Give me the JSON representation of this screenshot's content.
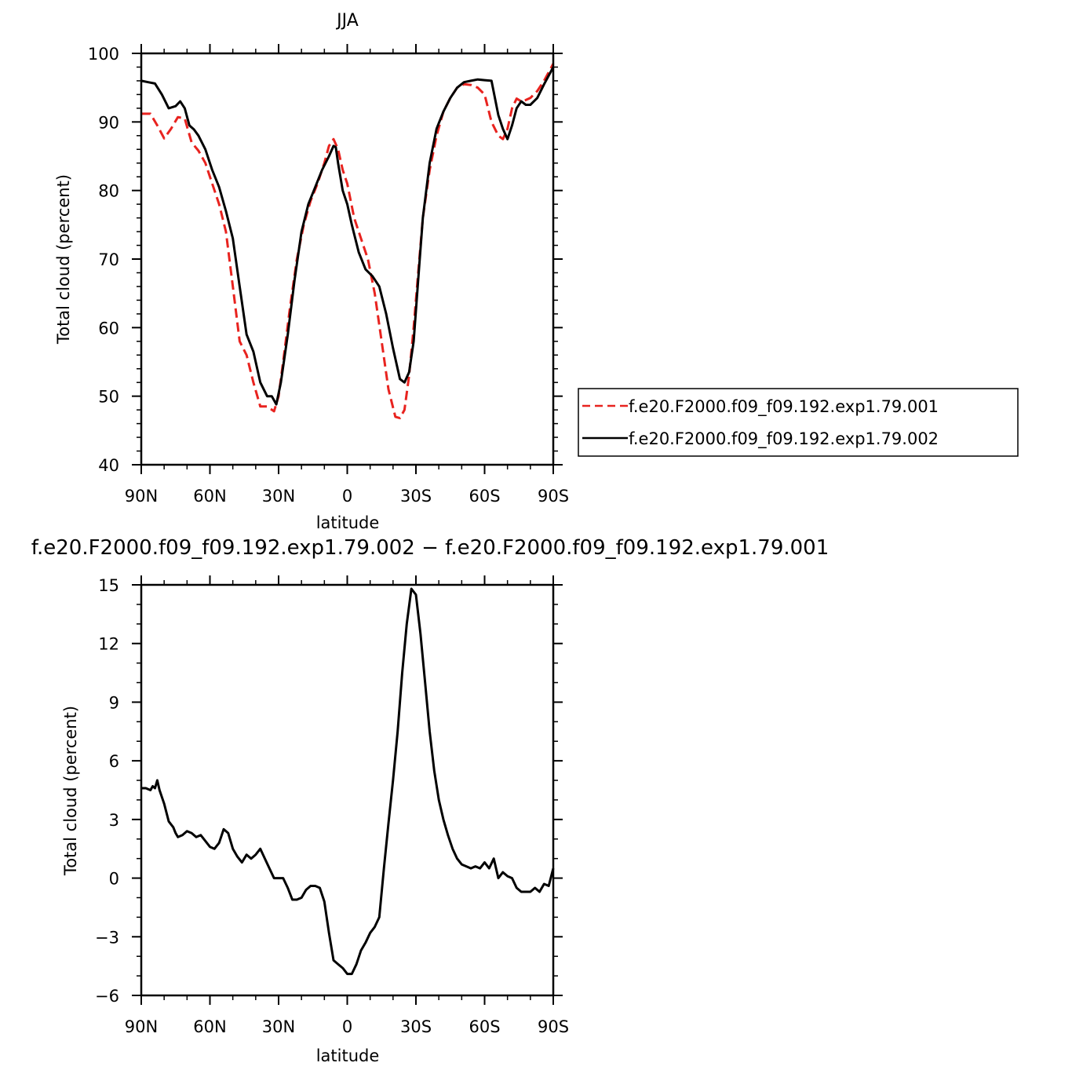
{
  "chart_data": [
    {
      "type": "line",
      "title": "JJA",
      "xlabel": "latitude",
      "ylabel": "Total cloud (percent)",
      "xlim": [
        90,
        -90
      ],
      "ylim": [
        40,
        100
      ],
      "yticks": [
        40,
        50,
        60,
        70,
        80,
        90,
        100
      ],
      "xticks": [
        {
          "value": 90,
          "label": "90N"
        },
        {
          "value": 60,
          "label": "60N"
        },
        {
          "value": 30,
          "label": "30N"
        },
        {
          "value": 0,
          "label": "0"
        },
        {
          "value": -30,
          "label": "30S"
        },
        {
          "value": -60,
          "label": "60S"
        },
        {
          "value": -90,
          "label": "90S"
        }
      ],
      "legend_position": "right",
      "series": [
        {
          "name": "f.e20.F2000.f09_f09.192.exp1.79.001",
          "color": "#e8231f",
          "dash": "dashed",
          "x": [
            90,
            86,
            83,
            80,
            77,
            74,
            71,
            68,
            65,
            62,
            59,
            56,
            53,
            50,
            47,
            44,
            41,
            38,
            35,
            32,
            30,
            28,
            25,
            22,
            19,
            16,
            13,
            10,
            8,
            6,
            4,
            2,
            0,
            -3,
            -6,
            -9,
            -12,
            -15,
            -18,
            -21,
            -23,
            -25,
            -27,
            -29,
            -31,
            -33,
            -36,
            -39,
            -42,
            -45,
            -48,
            -51,
            -54,
            -57,
            -60,
            -63,
            -66,
            -68,
            -70,
            -72,
            -74,
            -76,
            -78,
            -80,
            -83,
            -86,
            -90
          ],
          "y": [
            91.2,
            91.2,
            89.5,
            87.6,
            89,
            90.7,
            90.5,
            87,
            85.8,
            84,
            81,
            78,
            74,
            66,
            58,
            56,
            52,
            48.5,
            48.5,
            47.8,
            50,
            55,
            63,
            70,
            75,
            78.5,
            81,
            84,
            86.5,
            87.5,
            86,
            83,
            81,
            76,
            73,
            70,
            65,
            58,
            51,
            47,
            46.8,
            48,
            53,
            60,
            68,
            76,
            83,
            88,
            91.5,
            93.5,
            95,
            95.5,
            95.4,
            95,
            94,
            90,
            88,
            87.5,
            89,
            92,
            93.4,
            93,
            93.2,
            93.5,
            94.5,
            96,
            98.5
          ]
        },
        {
          "name": "f.e20.F2000.f09_f09.192.exp1.79.002",
          "color": "#000000",
          "dash": "solid",
          "x": [
            90,
            87,
            84,
            81,
            78,
            75,
            73,
            71,
            69,
            67,
            65,
            62,
            59,
            56,
            53,
            50,
            47,
            44,
            41,
            38,
            35,
            33,
            31,
            29,
            26,
            23,
            20,
            17,
            14,
            11,
            8,
            6,
            5,
            4,
            2,
            0,
            -2,
            -5,
            -8,
            -11,
            -14,
            -17,
            -20,
            -23,
            -25,
            -27,
            -29,
            -31,
            -33,
            -36,
            -39,
            -42,
            -45,
            -48,
            -51,
            -54,
            -57,
            -60,
            -63,
            -66,
            -68,
            -70,
            -72,
            -74,
            -76,
            -78,
            -80,
            -83,
            -86,
            -90
          ],
          "y": [
            96,
            95.8,
            95.6,
            94,
            92,
            92.3,
            93,
            92,
            89.5,
            88.9,
            88,
            86,
            83,
            80.5,
            77,
            73,
            66,
            59,
            56.5,
            52,
            50,
            50,
            48.8,
            52,
            59,
            67,
            74,
            78,
            80.5,
            83,
            85,
            86.5,
            86.3,
            84,
            80,
            78,
            75,
            71,
            68.5,
            67.5,
            66,
            62,
            57,
            52.5,
            52,
            53.5,
            58,
            67,
            76,
            84,
            89,
            91.5,
            93.5,
            95,
            95.8,
            96,
            96.2,
            96.1,
            96,
            91,
            89,
            87.5,
            89.5,
            92,
            93,
            92.5,
            92.5,
            93.5,
            95.5,
            98
          ]
        }
      ]
    },
    {
      "type": "line",
      "title": "f.e20.F2000.f09_f09.192.exp1.79.002 − f.e20.F2000.f09_f09.192.exp1.79.001",
      "xlabel": "latitude",
      "ylabel": "Total cloud (percent)",
      "xlim": [
        90,
        -90
      ],
      "ylim": [
        -6,
        15
      ],
      "yticks": [
        -6,
        -3,
        0,
        3,
        6,
        9,
        12,
        15
      ],
      "xticks": [
        {
          "value": 90,
          "label": "90N"
        },
        {
          "value": 60,
          "label": "60N"
        },
        {
          "value": 30,
          "label": "30N"
        },
        {
          "value": 0,
          "label": "0"
        },
        {
          "value": -30,
          "label": "30S"
        },
        {
          "value": -60,
          "label": "60S"
        },
        {
          "value": -90,
          "label": "90S"
        }
      ],
      "series": [
        {
          "name": "",
          "color": "#000000",
          "dash": "solid",
          "x": [
            90,
            88,
            86,
            85,
            84,
            83,
            82,
            80,
            78,
            76,
            75,
            74,
            72,
            70,
            68,
            66,
            64,
            62,
            60,
            58,
            56,
            54,
            52,
            50,
            48,
            46,
            44,
            42,
            40,
            38,
            36,
            34,
            32,
            30,
            28,
            26,
            24,
            22,
            20,
            18,
            16,
            14,
            12,
            10,
            8,
            6,
            4,
            2,
            0,
            -2,
            -4,
            -6,
            -8,
            -10,
            -12,
            -14,
            -16,
            -18,
            -20,
            -22,
            -24,
            -26,
            -28,
            -30,
            -32,
            -34,
            -36,
            -38,
            -40,
            -42,
            -44,
            -46,
            -48,
            -50,
            -52,
            -54,
            -56,
            -58,
            -60,
            -62,
            -64,
            -66,
            -68,
            -70,
            -72,
            -74,
            -76,
            -78,
            -80,
            -82,
            -84,
            -86,
            -88,
            -90
          ],
          "y": [
            4.6,
            4.6,
            4.5,
            4.7,
            4.6,
            5.0,
            4.5,
            3.8,
            2.9,
            2.6,
            2.3,
            2.1,
            2.2,
            2.4,
            2.3,
            2.1,
            2.2,
            1.9,
            1.6,
            1.5,
            1.8,
            2.5,
            2.3,
            1.5,
            1.1,
            0.8,
            1.2,
            1.0,
            1.2,
            1.5,
            1.0,
            0.5,
            0.0,
            0.0,
            0.0,
            -0.5,
            -1.1,
            -1.1,
            -1.0,
            -0.6,
            -0.4,
            -0.4,
            -0.5,
            -1.2,
            -2.8,
            -4.2,
            -4.4,
            -4.6,
            -4.9,
            -4.9,
            -4.4,
            -3.7,
            -3.3,
            -2.8,
            -2.5,
            -2.0,
            0.5,
            2.8,
            5.0,
            7.5,
            10.5,
            13.0,
            14.8,
            14.5,
            12.5,
            10.0,
            7.5,
            5.5,
            4.0,
            3.0,
            2.2,
            1.5,
            1.0,
            0.7,
            0.6,
            0.5,
            0.6,
            0.5,
            0.8,
            0.5,
            1.0,
            0.0,
            0.3,
            0.1,
            0.0,
            -0.5,
            -0.7,
            -0.7,
            -0.7,
            -0.5,
            -0.7,
            -0.3,
            -0.4,
            0.5
          ]
        }
      ]
    }
  ]
}
